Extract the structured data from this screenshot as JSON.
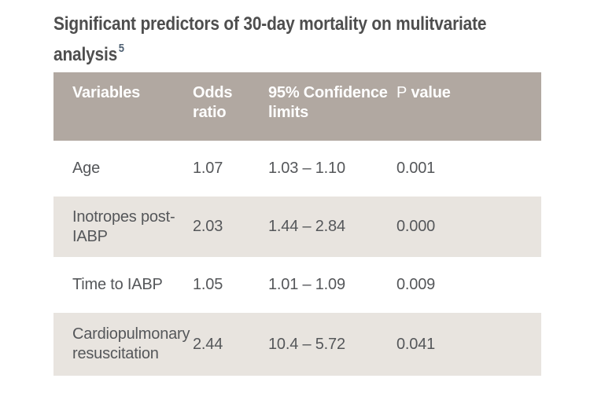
{
  "title": {
    "line1": "Significant predictors of 30-day mortality on mulitvariate",
    "line2": "analysis",
    "reference": "5"
  },
  "table": {
    "headers": {
      "variables": "Variables",
      "odds_ratio": "Odds ratio",
      "confidence_limits": "95% Confidence limits",
      "p_letter": "P",
      "p_word": "value"
    },
    "rows": [
      {
        "variable": "Age",
        "odds_ratio": "1.07",
        "confidence_limits": "1.03 – 1.10",
        "p_value": "0.001"
      },
      {
        "variable": "Inotropes post-IABP",
        "odds_ratio": "2.03",
        "confidence_limits": "1.44 – 2.84",
        "p_value": "0.000"
      },
      {
        "variable": "Time to IABP",
        "odds_ratio": "1.05",
        "confidence_limits": "1.01 – 1.09",
        "p_value": "0.009"
      },
      {
        "variable": "Cardiopulmonary resuscitation",
        "odds_ratio": "2.44",
        "confidence_limits": "10.4 – 5.72",
        "p_value": "0.041"
      }
    ]
  },
  "colors": {
    "header_background": "#b1a8a1",
    "stripe_background": "#e8e4df",
    "header_text": "#ffffff",
    "body_text": "#55575a",
    "title_text": "#4e4e4e",
    "reference_text": "#4f6173"
  },
  "chart_data": {
    "type": "table",
    "title": "Significant predictors of 30-day mortality on mulitvariate analysis [ref 5]",
    "columns": [
      "Variables",
      "Odds ratio",
      "95% Confidence limits",
      "P value"
    ],
    "rows": [
      [
        "Age",
        "1.07",
        "1.03 – 1.10",
        "0.001"
      ],
      [
        "Inotropes post-IABP",
        "2.03",
        "1.44 – 2.84",
        "0.000"
      ],
      [
        "Time to IABP",
        "1.05",
        "1.01 – 1.09",
        "0.009"
      ],
      [
        "Cardiopulmonary resuscitation",
        "2.44",
        "10.4 – 5.72",
        "0.041"
      ]
    ]
  }
}
